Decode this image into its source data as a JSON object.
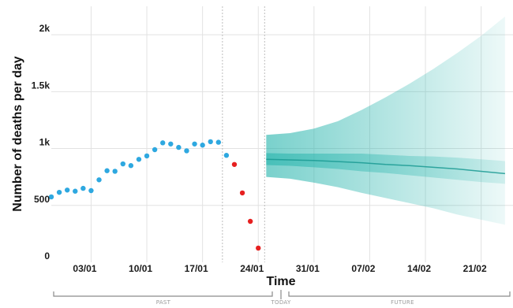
{
  "chart_data": {
    "type": "scatter",
    "xlabel": "Time",
    "ylabel": "Number of deaths per day",
    "ylim": [
      0,
      2250
    ],
    "y_ticks": [
      {
        "value": 0,
        "label": "0"
      },
      {
        "value": 500,
        "label": "500"
      },
      {
        "value": 1000,
        "label": "1k"
      },
      {
        "value": 1500,
        "label": "1.5k"
      },
      {
        "value": 2000,
        "label": "2k"
      }
    ],
    "x_ticks": [
      {
        "day": 3,
        "label": "03/01"
      },
      {
        "day": 10,
        "label": "10/01"
      },
      {
        "day": 17,
        "label": "17/01"
      },
      {
        "day": 24,
        "label": "24/01"
      },
      {
        "day": 31,
        "label": "31/01"
      },
      {
        "day": 38,
        "label": "07/02"
      },
      {
        "day": 45,
        "label": "14/02"
      },
      {
        "day": 52,
        "label": "21/02"
      }
    ],
    "periods": {
      "past": "PAST",
      "today": "TODAY",
      "future": "FUTURE"
    },
    "colors": {
      "observed": "#2ea8e0",
      "excluded": "#e62020",
      "forecast": "#20b2aa",
      "forecast_line": "#1a9a93"
    },
    "series": [
      {
        "kind": "observed",
        "x": [
          -2,
          -1,
          0,
          1,
          2,
          3,
          4,
          5,
          6,
          7,
          8,
          9,
          10,
          11,
          12,
          13,
          14,
          15,
          16,
          17,
          18,
          19,
          20
        ],
        "y": [
          575,
          615,
          635,
          625,
          650,
          630,
          725,
          805,
          800,
          865,
          850,
          905,
          935,
          990,
          1050,
          1040,
          1010,
          980,
          1040,
          1030,
          1060,
          1055,
          940
        ]
      },
      {
        "kind": "excluded",
        "x": [
          21,
          22,
          23,
          24
        ],
        "y": [
          860,
          610,
          360,
          125
        ]
      }
    ],
    "forecast": {
      "x": [
        25,
        28,
        31,
        34,
        37,
        40,
        43,
        46,
        49,
        52,
        55
      ],
      "median": [
        905,
        900,
        895,
        885,
        875,
        860,
        850,
        835,
        820,
        800,
        780
      ],
      "q25": [
        855,
        848,
        835,
        820,
        800,
        785,
        765,
        745,
        725,
        705,
        690
      ],
      "q75": [
        960,
        955,
        955,
        955,
        955,
        945,
        935,
        930,
        920,
        905,
        890
      ],
      "q05": [
        750,
        735,
        700,
        660,
        610,
        565,
        520,
        475,
        420,
        375,
        330
      ],
      "q95": [
        1120,
        1135,
        1175,
        1240,
        1340,
        1450,
        1570,
        1700,
        1840,
        1990,
        2160
      ]
    }
  }
}
